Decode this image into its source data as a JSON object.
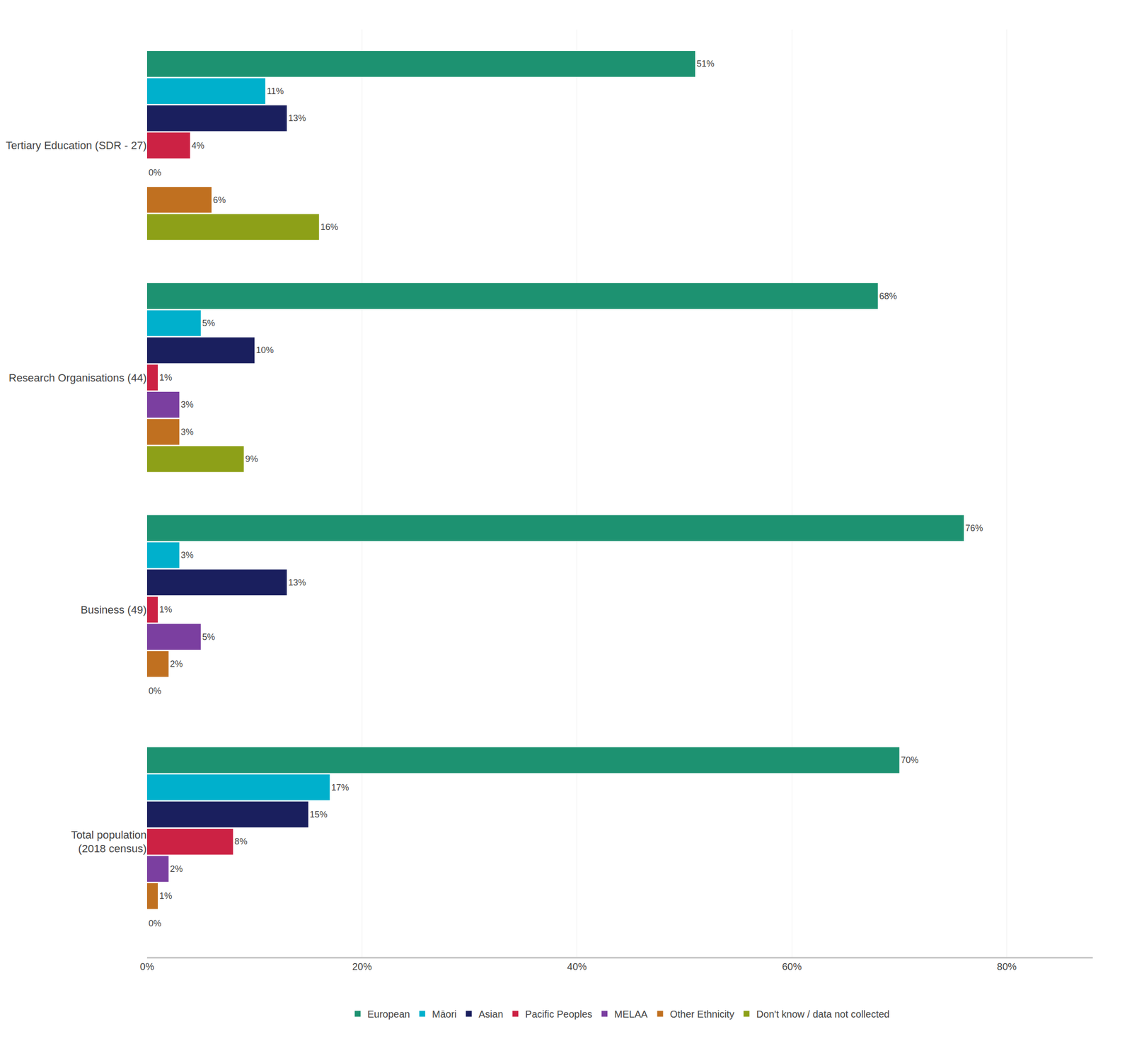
{
  "chart_data": {
    "type": "bar",
    "orientation": "horizontal",
    "categories": [
      "Tertiary Education (SDR - 27)",
      "Research Organisations (44)",
      "Business (49)",
      "Total population\n(2018 census)"
    ],
    "series": [
      {
        "name": "European",
        "color": "#1d9271",
        "values": [
          51,
          68,
          76,
          70
        ],
        "value_labels": [
          "51%",
          "68%",
          "76%",
          "70%"
        ]
      },
      {
        "name": "Māori",
        "color": "#00b0cc",
        "values": [
          11,
          5,
          3,
          17
        ],
        "value_labels": [
          "11%",
          "5%",
          "3%",
          "17%"
        ]
      },
      {
        "name": "Asian",
        "color": "#1a1f5e",
        "values": [
          13,
          10,
          13,
          15
        ],
        "value_labels": [
          "13%",
          "10%",
          "13%",
          "15%"
        ]
      },
      {
        "name": "Pacific Peoples",
        "color": "#cc2244",
        "values": [
          4,
          1,
          1,
          8
        ],
        "value_labels": [
          "4%",
          "1%",
          "1%",
          "8%"
        ]
      },
      {
        "name": "MELAA",
        "color": "#7b3fa0",
        "values": [
          0,
          3,
          5,
          2
        ],
        "value_labels": [
          "0%",
          "3%",
          "5%",
          "2%"
        ]
      },
      {
        "name": "Other Ethnicity",
        "color": "#c07020",
        "values": [
          6,
          3,
          2,
          1
        ],
        "value_labels": [
          "6%",
          "3%",
          "2%",
          "1%"
        ]
      },
      {
        "name": "Don't know / data not collected",
        "color": "#8da018",
        "values": [
          16,
          9,
          0,
          0
        ],
        "value_labels": [
          "16%",
          "9%",
          "0%",
          "0%"
        ]
      }
    ],
    "xlim": [
      0,
      88
    ],
    "xticks": [
      {
        "value": 0,
        "label": "0%"
      },
      {
        "value": 20,
        "label": "20%"
      },
      {
        "value": 40,
        "label": "40%"
      },
      {
        "value": 60,
        "label": "60%"
      },
      {
        "value": 80,
        "label": "80%"
      }
    ],
    "grid": true,
    "data_labels": true,
    "legend": "bottom"
  }
}
